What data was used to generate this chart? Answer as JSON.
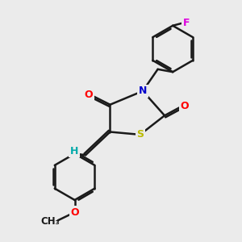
{
  "bg_color": "#ebebeb",
  "bond_color": "#1a1a1a",
  "atom_colors": {
    "O": "#ff0000",
    "N": "#0000cc",
    "S": "#bbbb00",
    "F": "#dd00dd",
    "H": "#00aaaa",
    "C": "#1a1a1a"
  },
  "bond_width": 1.8,
  "font_size": 9
}
